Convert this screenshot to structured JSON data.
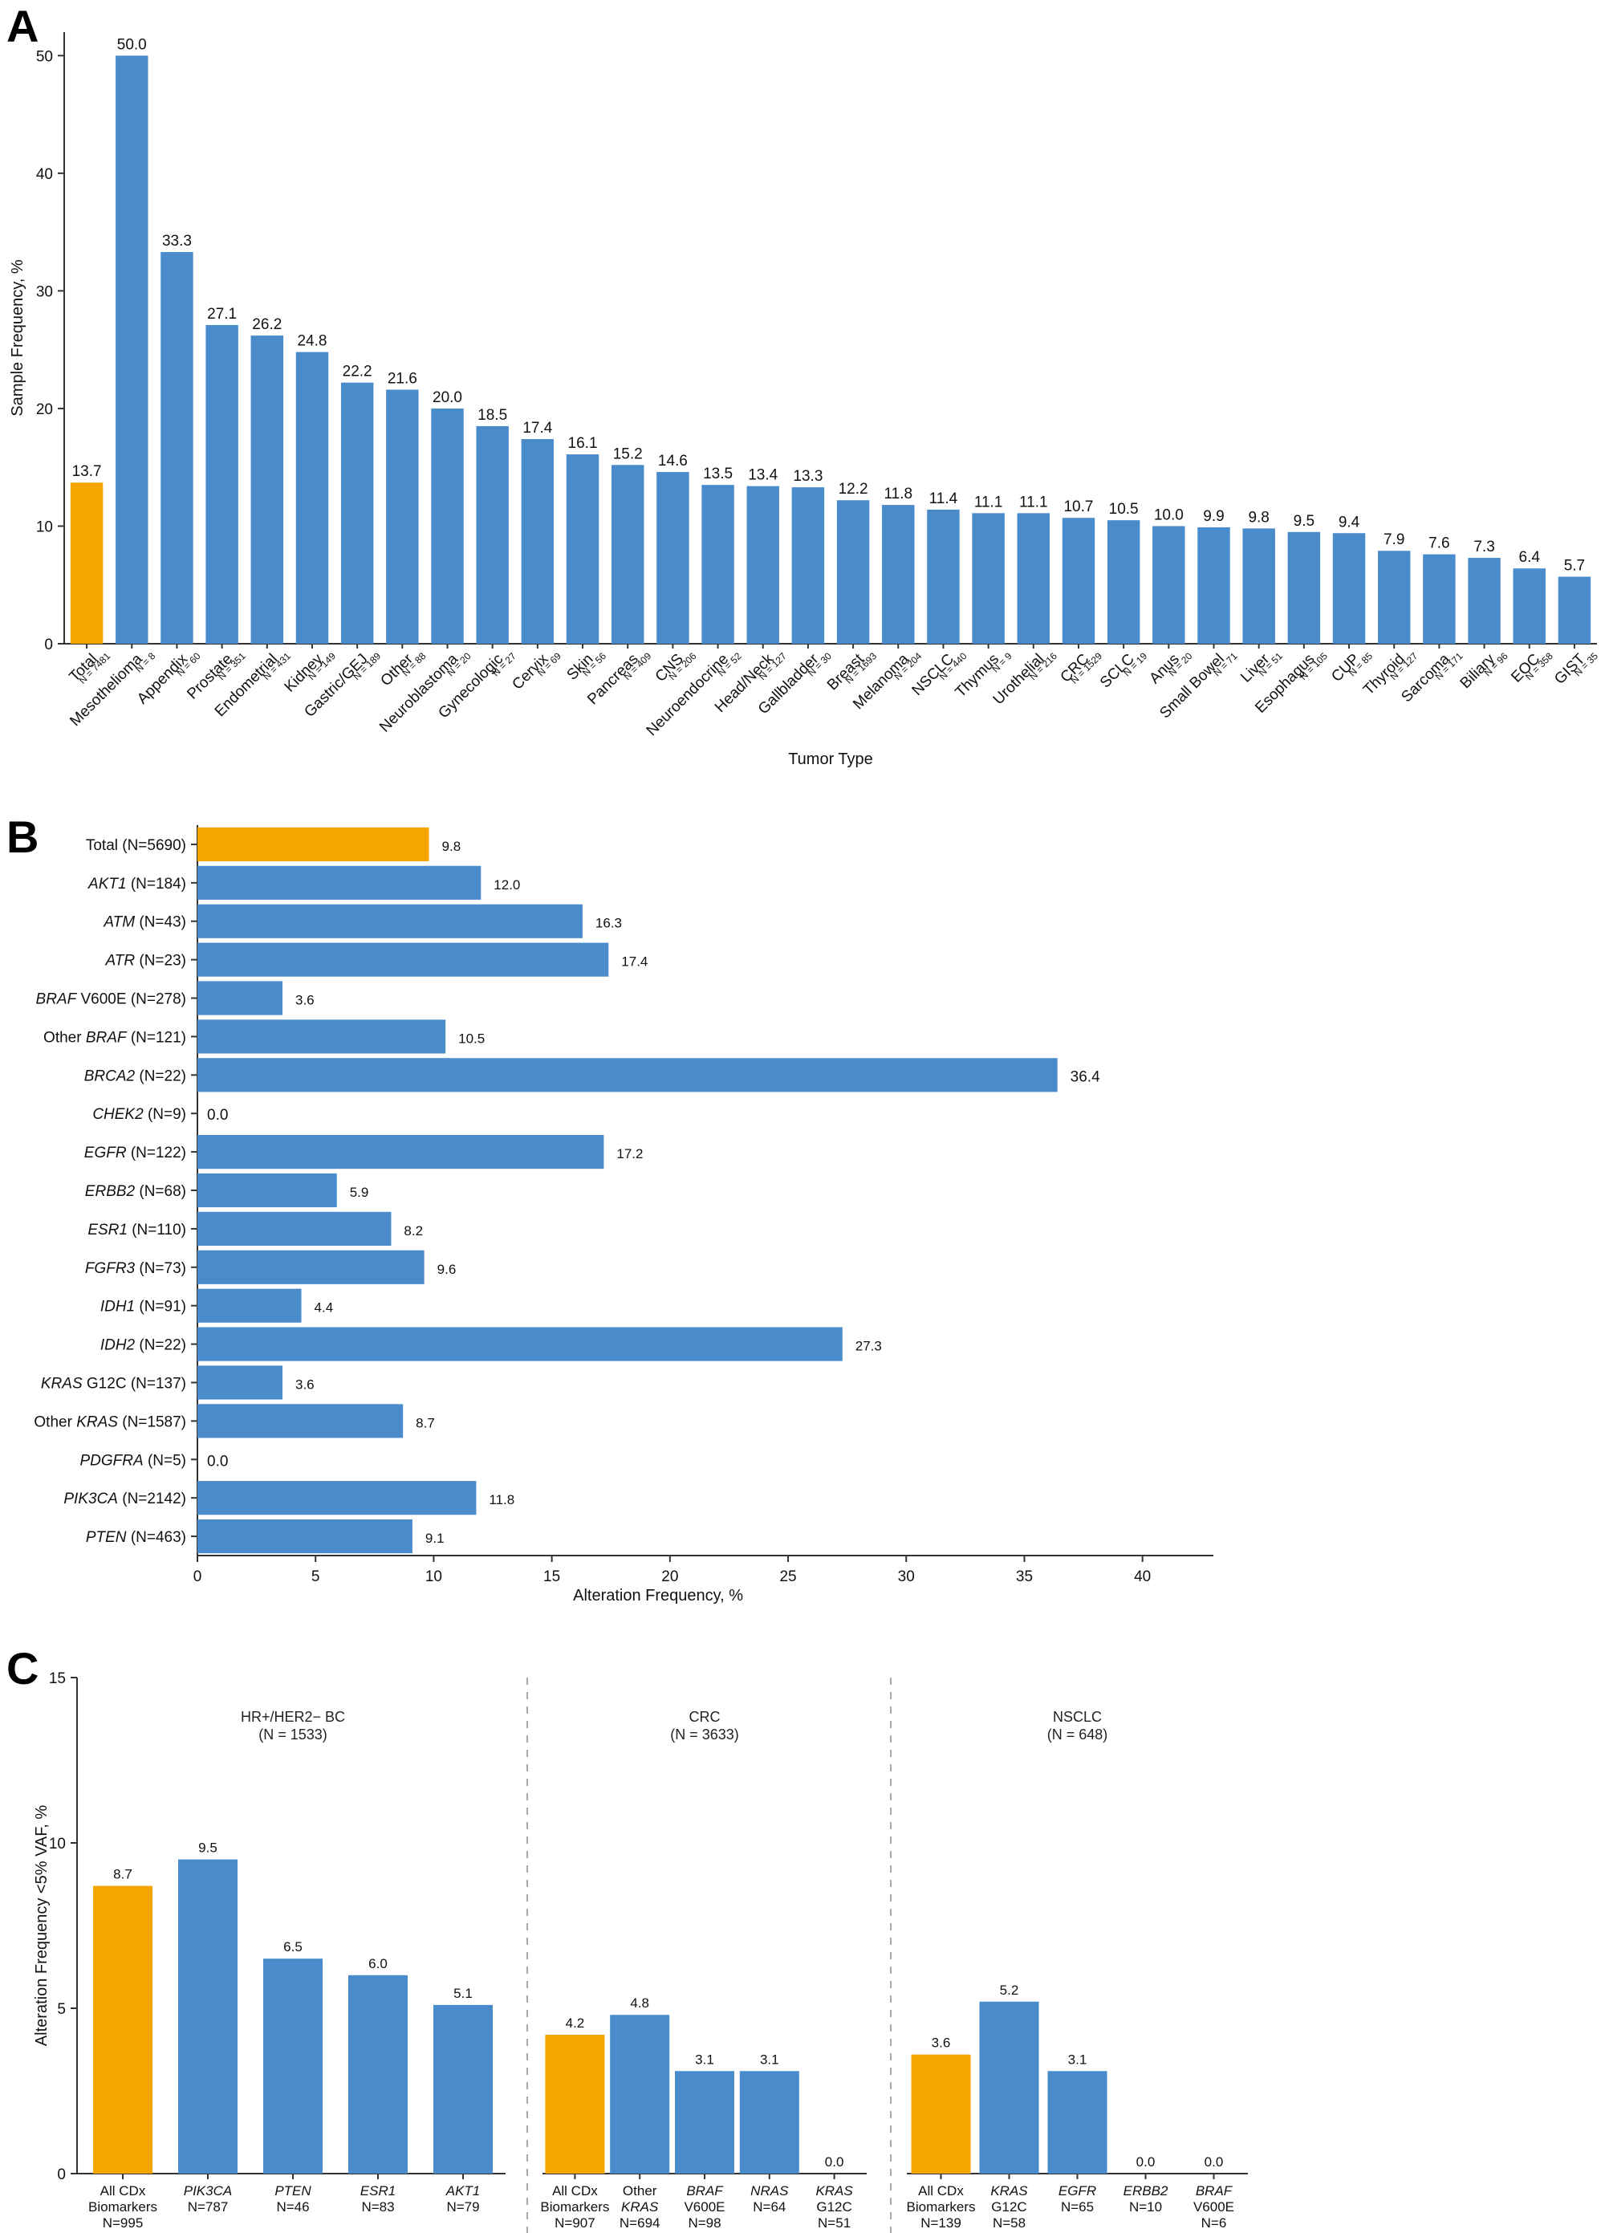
{
  "colors": {
    "total": "#F5A500",
    "bar": "#4A8BCB",
    "axis": "#333333"
  },
  "chart_data": [
    {
      "panel": "A",
      "type": "bar",
      "title": "",
      "xlabel": "Tumor Type",
      "ylabel": "Sample Frequency, %",
      "ylim": [
        0,
        52
      ],
      "yticks": [
        0,
        10,
        20,
        30,
        40,
        50
      ],
      "categories": [
        {
          "name": "Total",
          "n": "N = 7481",
          "value": 13.7,
          "highlight": true
        },
        {
          "name": "Mesothelioma",
          "n": "N = 8",
          "value": 50.0
        },
        {
          "name": "Appendix",
          "n": "N = 60",
          "value": 33.3
        },
        {
          "name": "Prostate",
          "n": "N = 351",
          "value": 27.1
        },
        {
          "name": "Endometrial",
          "n": "N = 431",
          "value": 26.2
        },
        {
          "name": "Kidney",
          "n": "N = 149",
          "value": 24.8
        },
        {
          "name": "Gastric/GEJ",
          "n": "N = 189",
          "value": 22.2
        },
        {
          "name": "Other",
          "n": "N = 88",
          "value": 21.6
        },
        {
          "name": "Neuroblastoma",
          "n": "N = 20",
          "value": 20.0
        },
        {
          "name": "Gynecologic",
          "n": "N = 27",
          "value": 18.5
        },
        {
          "name": "Cervix",
          "n": "N = 69",
          "value": 17.4
        },
        {
          "name": "Skin",
          "n": "N = 56",
          "value": 16.1
        },
        {
          "name": "Pancreas",
          "n": "N = 409",
          "value": 15.2
        },
        {
          "name": "CNS",
          "n": "N = 206",
          "value": 14.6
        },
        {
          "name": "Neuroendocrine",
          "n": "N = 52",
          "value": 13.5
        },
        {
          "name": "Head/Neck",
          "n": "N = 127",
          "value": 13.4
        },
        {
          "name": "Gallbladder",
          "n": "N = 30",
          "value": 13.3
        },
        {
          "name": "Breast",
          "n": "N = 1693",
          "value": 12.2
        },
        {
          "name": "Melanoma",
          "n": "N = 204",
          "value": 11.8
        },
        {
          "name": "NSCLC",
          "n": "N = 440",
          "value": 11.4
        },
        {
          "name": "Thymus",
          "n": "N = 9",
          "value": 11.1
        },
        {
          "name": "Urothelial",
          "n": "N = 216",
          "value": 11.1
        },
        {
          "name": "CRC",
          "n": "N = 1529",
          "value": 10.7
        },
        {
          "name": "SCLC",
          "n": "N = 19",
          "value": 10.5
        },
        {
          "name": "Anus",
          "n": "N = 20",
          "value": 10.0
        },
        {
          "name": "Small Bowel",
          "n": "N = 71",
          "value": 9.9
        },
        {
          "name": "Liver",
          "n": "N = 51",
          "value": 9.8
        },
        {
          "name": "Esophagus",
          "n": "N = 105",
          "value": 9.5
        },
        {
          "name": "CUP",
          "n": "N = 85",
          "value": 9.4
        },
        {
          "name": "Thyroid",
          "n": "N = 127",
          "value": 7.9
        },
        {
          "name": "Sarcoma",
          "n": "N = 171",
          "value": 7.6
        },
        {
          "name": "Biliary",
          "n": "N = 96",
          "value": 7.3
        },
        {
          "name": "EOC",
          "n": "N = 358",
          "value": 6.4
        },
        {
          "name": "GIST",
          "n": "N = 35",
          "value": 5.7
        }
      ]
    },
    {
      "panel": "B",
      "type": "bar",
      "orientation": "horizontal",
      "xlabel": "Alteration Frequency, %",
      "ylabel": "",
      "xlim": [
        0,
        43
      ],
      "xticks": [
        0,
        5,
        10,
        15,
        20,
        25,
        30,
        35,
        40
      ],
      "categories": [
        {
          "gene": "",
          "rest": "Total (N=5690)",
          "value": 9.8,
          "highlight": true
        },
        {
          "gene": "AKT1",
          "rest": " (N=184)",
          "value": 12.0
        },
        {
          "gene": "ATM",
          "rest": " (N=43)",
          "value": 16.3
        },
        {
          "gene": "ATR",
          "rest": " (N=23)",
          "value": 17.4
        },
        {
          "gene": "BRAF",
          "rest": " V600E (N=278)",
          "value": 3.6
        },
        {
          "pre": "Other ",
          "gene": "BRAF",
          "rest": " (N=121)",
          "value": 10.5
        },
        {
          "gene": "BRCA2",
          "rest": " (N=22)",
          "value": 36.4
        },
        {
          "gene": "CHEK2",
          "rest": " (N=9)",
          "value": 0.0
        },
        {
          "gene": "EGFR",
          "rest": " (N=122)",
          "value": 17.2
        },
        {
          "gene": "ERBB2",
          "rest": " (N=68)",
          "value": 5.9
        },
        {
          "gene": "ESR1",
          "rest": " (N=110)",
          "value": 8.2
        },
        {
          "gene": "FGFR3",
          "rest": " (N=73)",
          "value": 9.6
        },
        {
          "gene": "IDH1",
          "rest": " (N=91)",
          "value": 4.4
        },
        {
          "gene": "IDH2",
          "rest": " (N=22)",
          "value": 27.3
        },
        {
          "gene": "KRAS",
          "rest": " G12C (N=137)",
          "value": 3.6
        },
        {
          "pre": "Other ",
          "gene": "KRAS",
          "rest": " (N=1587)",
          "value": 8.7
        },
        {
          "gene": "PDGFRA",
          "rest": " (N=5)",
          "value": 0.0
        },
        {
          "gene": "PIK3CA",
          "rest": " (N=2142)",
          "value": 11.8
        },
        {
          "gene": "PTEN",
          "rest": " (N=463)",
          "value": 9.1
        }
      ]
    },
    {
      "panel": "C",
      "type": "bar",
      "ylabel": "Alteration Frequency <5% VAF, %",
      "ylim": [
        0,
        15
      ],
      "yticks": [
        0,
        5,
        10,
        15
      ],
      "groups": [
        {
          "title": "HR+/HER2− BC",
          "n": "(N = 1533)",
          "bars": [
            {
              "l1": "All CDx",
              "l1i": false,
              "l2": "Biomarkers",
              "n": "N=995",
              "value": 8.7,
              "highlight": true
            },
            {
              "l1": "PIK3CA",
              "l1i": true,
              "l2": "",
              "n": "N=787",
              "value": 9.5
            },
            {
              "l1": "PTEN",
              "l1i": true,
              "l2": "",
              "n": "N=46",
              "value": 6.5
            },
            {
              "l1": "ESR1",
              "l1i": true,
              "l2": "",
              "n": "N=83",
              "value": 6.0
            },
            {
              "l1": "AKT1",
              "l1i": true,
              "l2": "",
              "n": "N=79",
              "value": 5.1
            }
          ]
        },
        {
          "title": "CRC",
          "n": "(N = 3633)",
          "bars": [
            {
              "l1": "All CDx",
              "l1i": false,
              "l2": "Biomarkers",
              "n": "N=907",
              "value": 4.2,
              "highlight": true
            },
            {
              "l1": "Other",
              "l1i": false,
              "l2": "KRAS",
              "l2i": true,
              "n": "N=694",
              "value": 4.8
            },
            {
              "l1": "BRAF",
              "l1i": true,
              "l2": "V600E",
              "n": "N=98",
              "value": 3.1
            },
            {
              "l1": "NRAS",
              "l1i": true,
              "l2": "",
              "n": "N=64",
              "value": 3.1
            },
            {
              "l1": "KRAS",
              "l1i": true,
              "l2": "G12C",
              "n": "N=51",
              "value": 0.0
            }
          ]
        },
        {
          "title": "NSCLC",
          "n": "(N = 648)",
          "bars": [
            {
              "l1": "All CDx",
              "l1i": false,
              "l2": "Biomarkers",
              "n": "N=139",
              "value": 3.6,
              "highlight": true
            },
            {
              "l1": "KRAS",
              "l1i": true,
              "l2": "G12C",
              "n": "N=58",
              "value": 5.2
            },
            {
              "l1": "EGFR",
              "l1i": true,
              "l2": "",
              "n": "N=65",
              "value": 3.1
            },
            {
              "l1": "ERBB2",
              "l1i": true,
              "l2": "",
              "n": "N=10",
              "value": 0.0
            },
            {
              "l1": "BRAF",
              "l1i": true,
              "l2": "V600E",
              "n": "N=6",
              "value": 0.0
            }
          ]
        }
      ]
    }
  ],
  "panels": [
    "A",
    "B",
    "C"
  ]
}
